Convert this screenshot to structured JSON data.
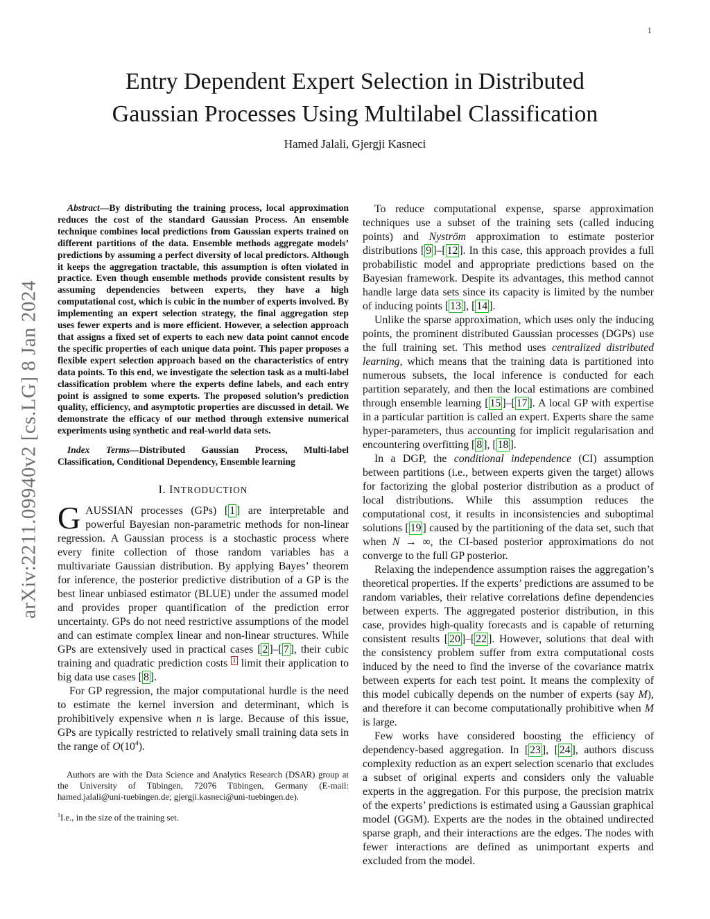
{
  "page": {
    "number": "1"
  },
  "watermark": {
    "text": "arXiv:2211.09940v2  [cs.LG]  8 Jan 2024"
  },
  "colors": {
    "citation_border": "#19c419",
    "footnote_border": "#e01b1b",
    "watermark_text": "#6f6f6f"
  },
  "header": {
    "title_line1": "Entry Dependent Expert Selection in Distributed",
    "title_line2": "Gaussian Processes Using Multilabel Classification",
    "authors": "Hamed Jalali, Gjergji Kasneci"
  },
  "left_column": {
    "abstract": [
      {
        "t": "Abstract",
        "s": "bi"
      },
      {
        "t": "—By distributing the training process, local approximation reduces the cost of the standard Gaussian Process. An ensemble technique combines local predictions from Gaussian experts trained on different partitions of the data. Ensemble methods aggregate models’ predictions by assuming a perfect diversity of local predictors. Although it keeps the aggregation tractable, this assumption is often violated in practice. Even though ensemble methods provide consistent results by assuming dependencies between experts, they have a high computational cost, which is cubic in the number of experts involved. By implementing an expert selection strategy, the final aggregation step uses fewer experts and is more efficient. However, a selection approach that assigns a fixed set of experts to each new data point cannot encode the specific properties of each unique data point. This paper proposes a flexible expert selection approach based on the characteristics of entry data points. To this end, we investigate the selection task as a multi-label classification problem where the experts define labels, and each entry point is assigned to some experts. The proposed solution’s prediction quality, efficiency, and asymptotic properties are discussed in detail. We demonstrate the efficacy of our method through extensive numerical experiments using synthetic and real-world data sets.",
        "s": "r"
      }
    ],
    "index_terms": [
      {
        "t": "Index Terms",
        "s": "bi"
      },
      {
        "t": "—Distributed Gaussian Process, Multi-label Classification, Conditional Dependency, Ensemble learning",
        "s": "r"
      }
    ],
    "section_heading": [
      {
        "t": "I. I",
        "s": "r"
      },
      {
        "t": "NTRODUCTION",
        "s": "scs"
      }
    ],
    "para_intro": [
      {
        "t": "G",
        "s": "dc"
      },
      {
        "t": "AUSSIAN processes (GPs) [",
        "s": "r"
      },
      {
        "t": "1",
        "s": "c"
      },
      {
        "t": "] are interpretable and powerful Bayesian non-parametric methods for non-linear regression. A Gaussian process is a stochastic process where every finite collection of those random variables has a multivariate Gaussian distribution. By applying Bayes’ theorem for inference, the posterior predictive distribution of a GP is the best linear unbiased estimator (BLUE) under the assumed model and provides proper quantification of the prediction error uncertainty. GPs do not need restrictive assumptions of the model and can estimate complex linear and non-linear structures. While GPs are extensively used in practical cases [",
        "s": "r"
      },
      {
        "t": "2",
        "s": "c"
      },
      {
        "t": "]–[",
        "s": "r"
      },
      {
        "t": "7",
        "s": "c"
      },
      {
        "t": "], their cubic training and quadratic prediction costs ",
        "s": "r"
      },
      {
        "t": "1",
        "s": "f"
      },
      {
        "t": " limit their application to big data use cases [",
        "s": "r"
      },
      {
        "t": "8",
        "s": "c"
      },
      {
        "t": "].",
        "s": "r"
      }
    ],
    "para_gp_regression": [
      {
        "t": "For GP regression, the major computational hurdle is the need to estimate the kernel inversion and determinant, which is prohibitively expensive when ",
        "s": "r"
      },
      {
        "t": "n",
        "s": "m"
      },
      {
        "t": " is large. Because of this issue, GPs are typically restricted to relatively small training data sets in the range of ",
        "s": "r"
      },
      {
        "t": "O",
        "s": "m"
      },
      {
        "t": "(10",
        "s": "r"
      },
      {
        "t": "4",
        "s": "sup"
      },
      {
        "t": ").",
        "s": "r"
      }
    ],
    "affiliation": [
      {
        "t": "Authors are with the Data Science and Analytics Research (DSAR) group at the University of Tübingen, 72076 Tübingen, Germany (E-mail: hamed.jalali@uni-tuebingen.de; gjergji.kasneci@uni-tuebingen.de).",
        "s": "r"
      }
    ],
    "footnote": [
      {
        "t": "1",
        "s": "sup"
      },
      {
        "t": "I.e., in the size of the training set.",
        "s": "r"
      }
    ]
  },
  "right_column": {
    "para_sparse": [
      {
        "t": "To reduce computational expense, sparse approximation techniques use a subset of the training sets (called inducing points) and ",
        "s": "r"
      },
      {
        "t": "Nyström",
        "s": "i"
      },
      {
        "t": " approximation to estimate posterior distributions [",
        "s": "r"
      },
      {
        "t": "9",
        "s": "c"
      },
      {
        "t": "]–[",
        "s": "r"
      },
      {
        "t": "12",
        "s": "c"
      },
      {
        "t": "]. In this case, this approach provides a full probabilistic model and appropriate predictions based on the Bayesian framework. Despite its advantages, this method cannot handle large data sets since its capacity is limited by the number of inducing points [",
        "s": "r"
      },
      {
        "t": "13",
        "s": "c"
      },
      {
        "t": "], [",
        "s": "r"
      },
      {
        "t": "14",
        "s": "c"
      },
      {
        "t": "].",
        "s": "r"
      }
    ],
    "para_dgp": [
      {
        "t": "Unlike the sparse approximation, which uses only the inducing points, the prominent distributed Gaussian processes (DGPs) use the full training set. This method uses ",
        "s": "r"
      },
      {
        "t": "centralized distributed learning",
        "s": "i"
      },
      {
        "t": ", which means that the training data is partitioned into numerous subsets, the local inference is conducted for each partition separately, and then the local estimations are combined through ensemble learning [",
        "s": "r"
      },
      {
        "t": "15",
        "s": "c"
      },
      {
        "t": "]–[",
        "s": "r"
      },
      {
        "t": "17",
        "s": "c"
      },
      {
        "t": "]. A local GP with expertise in a particular partition is called an expert. Experts share the same hyper-parameters, thus accounting for implicit regularisation and encountering overfitting [",
        "s": "r"
      },
      {
        "t": "8",
        "s": "c"
      },
      {
        "t": "], [",
        "s": "r"
      },
      {
        "t": "18",
        "s": "c"
      },
      {
        "t": "].",
        "s": "r"
      }
    ],
    "para_ci": [
      {
        "t": "In a DGP, the ",
        "s": "r"
      },
      {
        "t": "conditional independence",
        "s": "i"
      },
      {
        "t": " (CI) assumption between partitions (i.e., between experts given the target) allows for factorizing the global posterior distribution as a product of local distributions. While this assumption reduces the computational cost, it results in inconsistencies and suboptimal solutions [",
        "s": "r"
      },
      {
        "t": "19",
        "s": "c"
      },
      {
        "t": "] caused by the partitioning of the data set, such that when ",
        "s": "r"
      },
      {
        "t": "N",
        "s": "m"
      },
      {
        "t": " → ∞, the CI-based posterior approximations do not converge to the full GP posterior.",
        "s": "r"
      }
    ],
    "para_relaxing": [
      {
        "t": "Relaxing the independence assumption raises the aggregation’s theoretical properties. If the experts’ predictions are assumed to be random variables, their relative correlations define dependencies between experts. The aggregated posterior distribution, in this case, provides high-quality forecasts and is capable of returning consistent results [",
        "s": "r"
      },
      {
        "t": "20",
        "s": "c"
      },
      {
        "t": "]–[",
        "s": "r"
      },
      {
        "t": "22",
        "s": "c"
      },
      {
        "t": "]. However, solutions that deal with the consistency problem suffer from extra computational costs induced by the need to find the inverse of the covariance matrix between experts for each test point. It means the complexity of this model cubically depends on the number of experts (say ",
        "s": "r"
      },
      {
        "t": "M",
        "s": "m"
      },
      {
        "t": "), and therefore it can become computationally prohibitive when ",
        "s": "r"
      },
      {
        "t": "M",
        "s": "m"
      },
      {
        "t": " is large.",
        "s": "r"
      }
    ],
    "para_few_works": [
      {
        "t": "Few works have considered boosting the efficiency of dependency-based aggregation. In [",
        "s": "r"
      },
      {
        "t": "23",
        "s": "c"
      },
      {
        "t": "], [",
        "s": "r"
      },
      {
        "t": "24",
        "s": "c"
      },
      {
        "t": "], authors discuss complexity reduction as an expert selection scenario that excludes a subset of original experts and considers only the valuable experts in the aggregation. For this purpose, the precision matrix of the experts’ predictions is estimated using a Gaussian graphical model (GGM). Experts are the nodes in the obtained undirected sparse graph, and their interactions are the edges. The nodes with fewer interactions are defined as unimportant experts and excluded from the model.",
        "s": "r"
      }
    ]
  }
}
